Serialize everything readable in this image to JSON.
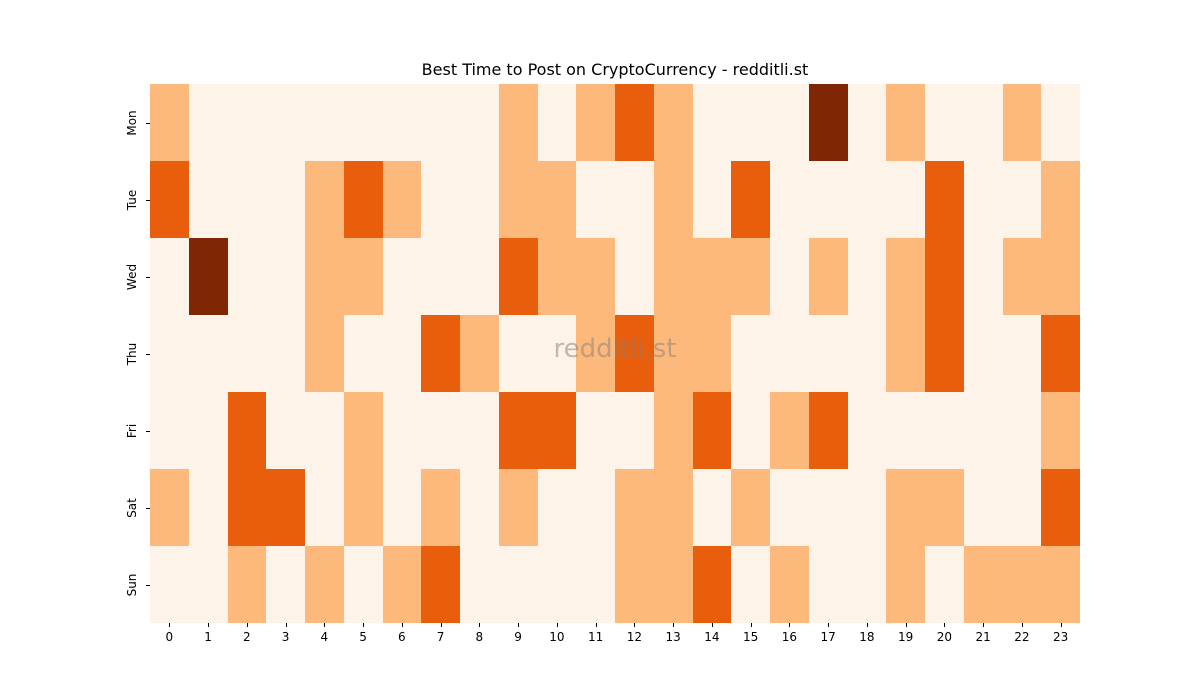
{
  "chart_data": {
    "type": "heatmap",
    "title": "Best Time to Post on CryptoCurrency - redditli.st",
    "xlabel": "",
    "ylabel": "",
    "x": [
      "0",
      "1",
      "2",
      "3",
      "4",
      "5",
      "6",
      "7",
      "8",
      "9",
      "10",
      "11",
      "12",
      "13",
      "14",
      "15",
      "16",
      "17",
      "18",
      "19",
      "20",
      "21",
      "22",
      "23"
    ],
    "y": [
      "Mon",
      "Tue",
      "Wed",
      "Thu",
      "Fri",
      "Sat",
      "Sun"
    ],
    "colormap": "Oranges",
    "level_colors": [
      "#fef3e8",
      "#fdb87c",
      "#e95e0d",
      "#7f2704"
    ],
    "values": [
      [
        1,
        0,
        0,
        0,
        0,
        0,
        0,
        0,
        0,
        1,
        0,
        1,
        2,
        1,
        0,
        0,
        0,
        3,
        0,
        1,
        0,
        0,
        1,
        0
      ],
      [
        2,
        0,
        0,
        0,
        1,
        2,
        1,
        0,
        0,
        1,
        1,
        0,
        0,
        1,
        0,
        2,
        0,
        0,
        0,
        0,
        2,
        0,
        0,
        1
      ],
      [
        0,
        3,
        0,
        0,
        1,
        1,
        0,
        0,
        0,
        2,
        1,
        1,
        0,
        1,
        1,
        1,
        0,
        1,
        0,
        1,
        2,
        0,
        1,
        1
      ],
      [
        0,
        0,
        0,
        0,
        1,
        0,
        0,
        2,
        1,
        0,
        0,
        1,
        2,
        1,
        1,
        0,
        0,
        0,
        0,
        1,
        2,
        0,
        0,
        2
      ],
      [
        0,
        0,
        2,
        0,
        0,
        1,
        0,
        0,
        0,
        2,
        2,
        0,
        0,
        1,
        2,
        0,
        1,
        2,
        0,
        0,
        0,
        0,
        0,
        1
      ],
      [
        1,
        0,
        2,
        2,
        0,
        1,
        0,
        1,
        0,
        1,
        0,
        0,
        1,
        1,
        0,
        1,
        0,
        0,
        0,
        1,
        1,
        0,
        0,
        2
      ],
      [
        0,
        0,
        1,
        0,
        1,
        0,
        1,
        2,
        0,
        0,
        0,
        0,
        1,
        1,
        2,
        0,
        1,
        0,
        0,
        1,
        0,
        1,
        1,
        1
      ]
    ],
    "colorbar": false,
    "watermark": "redditli.st"
  }
}
